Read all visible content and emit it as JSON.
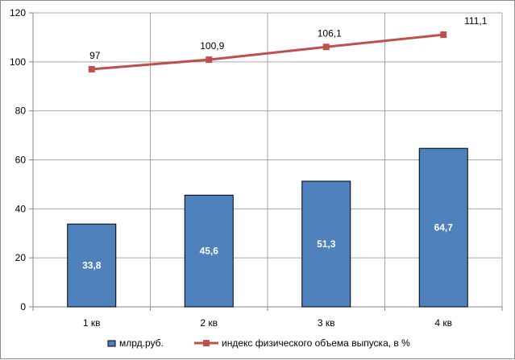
{
  "chart_data": {
    "type": "bar",
    "categories": [
      "1 кв",
      "2 кв",
      "3 кв",
      "4 кв"
    ],
    "series": [
      {
        "name": "млрд.руб.",
        "type": "bar",
        "values": [
          33.8,
          45.6,
          51.3,
          64.7
        ],
        "labels": [
          "33,8",
          "45,6",
          "51,3",
          "64,7"
        ],
        "color": "#4f81bd"
      },
      {
        "name": "индекс физического объема выпуска, в %",
        "type": "line",
        "values": [
          97,
          100.9,
          106.1,
          111.1
        ],
        "labels": [
          "97",
          "100,9",
          "106,1",
          "111,1"
        ],
        "color": "#c0504d",
        "marker": "square"
      }
    ],
    "yticks": [
      "0",
      "20",
      "40",
      "60",
      "80",
      "100",
      "120"
    ],
    "ylim": [
      0,
      120
    ],
    "title": "",
    "xlabel": "",
    "ylabel": "",
    "grid": true,
    "legend_position": "bottom"
  }
}
